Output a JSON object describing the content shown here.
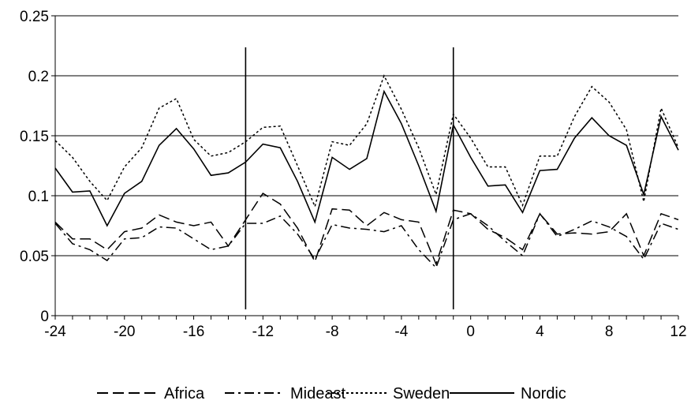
{
  "chart_data": {
    "type": "line",
    "title": "",
    "xlabel": "",
    "ylabel": "",
    "xlim": [
      -24,
      12
    ],
    "ylim": [
      0,
      0.25
    ],
    "grid": "horizontal",
    "legend_position": "bottom",
    "x_ticks": [
      "-24",
      "-20",
      "-16",
      "-12",
      "-8",
      "-4",
      "0",
      "4",
      "8",
      "12"
    ],
    "y_ticks": [
      "0",
      "0.05",
      "0.1",
      "0.15",
      "0.2",
      "0.25"
    ],
    "vertical_markers": [
      -13,
      -1
    ],
    "x": [
      -24,
      -23,
      -22,
      -21,
      -20,
      -19,
      -18,
      -17,
      -16,
      -15,
      -14,
      -13,
      -12,
      -11,
      -10,
      -9,
      -8,
      -7,
      -6,
      -5,
      -4,
      -3,
      -2,
      -1,
      0,
      1,
      2,
      3,
      4,
      5,
      6,
      7,
      8,
      9,
      10,
      11,
      12
    ],
    "series": [
      {
        "name": "Africa",
        "dash": "long-dash",
        "values": [
          0.078,
          0.064,
          0.064,
          0.055,
          0.07,
          0.073,
          0.084,
          0.078,
          0.075,
          0.078,
          0.058,
          0.08,
          0.102,
          0.093,
          0.073,
          0.045,
          0.089,
          0.088,
          0.075,
          0.086,
          0.08,
          0.078,
          0.043,
          0.088,
          0.085,
          0.072,
          0.065,
          0.055,
          0.085,
          0.068,
          0.069,
          0.068,
          0.07,
          0.085,
          0.05,
          0.085,
          0.08
        ]
      },
      {
        "name": "Mideast",
        "dash": "dash-dot",
        "values": [
          0.077,
          0.06,
          0.055,
          0.046,
          0.064,
          0.065,
          0.074,
          0.073,
          0.064,
          0.055,
          0.058,
          0.077,
          0.077,
          0.083,
          0.068,
          0.047,
          0.076,
          0.073,
          0.072,
          0.07,
          0.075,
          0.055,
          0.04,
          0.08,
          0.085,
          0.075,
          0.062,
          0.05,
          0.085,
          0.066,
          0.072,
          0.079,
          0.074,
          0.066,
          0.047,
          0.077,
          0.072
        ]
      },
      {
        "name": "Sweden",
        "dash": "dotted",
        "values": [
          0.146,
          0.132,
          0.112,
          0.096,
          0.124,
          0.14,
          0.173,
          0.181,
          0.147,
          0.133,
          0.136,
          0.145,
          0.157,
          0.158,
          0.125,
          0.091,
          0.145,
          0.142,
          0.16,
          0.2,
          0.172,
          0.14,
          0.101,
          0.168,
          0.148,
          0.124,
          0.124,
          0.092,
          0.133,
          0.133,
          0.166,
          0.191,
          0.178,
          0.155,
          0.095,
          0.173,
          0.14
        ]
      },
      {
        "name": "Nordic",
        "dash": "solid",
        "values": [
          0.123,
          0.103,
          0.104,
          0.075,
          0.102,
          0.112,
          0.142,
          0.156,
          0.139,
          0.117,
          0.119,
          0.128,
          0.143,
          0.14,
          0.112,
          0.078,
          0.132,
          0.122,
          0.131,
          0.187,
          0.16,
          0.125,
          0.087,
          0.159,
          0.132,
          0.108,
          0.109,
          0.086,
          0.121,
          0.122,
          0.148,
          0.165,
          0.15,
          0.142,
          0.101,
          0.166,
          0.138
        ]
      }
    ]
  },
  "legend": {
    "items": [
      "Africa",
      "Mideast",
      "Sweden",
      "Nordic"
    ]
  }
}
